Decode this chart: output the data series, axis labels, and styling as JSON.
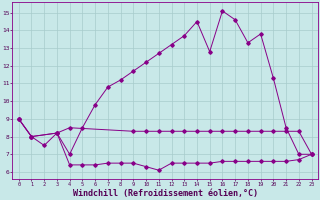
{
  "background_color": "#c8e8e8",
  "grid_color": "#a8cccc",
  "line_color": "#880088",
  "xlabel": "Windchill (Refroidissement éolien,°C)",
  "xlabel_fontsize": 6.0,
  "xlim": [
    -0.5,
    23.5
  ],
  "ylim": [
    5.6,
    15.6
  ],
  "yticks": [
    6,
    7,
    8,
    9,
    10,
    11,
    12,
    13,
    14,
    15
  ],
  "xticks": [
    0,
    1,
    2,
    3,
    4,
    5,
    6,
    7,
    8,
    9,
    10,
    11,
    12,
    13,
    14,
    15,
    16,
    17,
    18,
    19,
    20,
    21,
    22,
    23
  ],
  "series1": {
    "x": [
      0,
      1,
      2,
      3,
      4,
      5,
      6,
      7,
      8,
      9,
      10,
      11,
      12,
      13,
      14,
      15,
      16,
      17,
      18,
      19,
      20,
      21,
      22,
      23
    ],
    "y": [
      9.0,
      8.0,
      7.5,
      8.2,
      6.4,
      6.4,
      6.4,
      6.5,
      6.5,
      6.5,
      6.3,
      6.1,
      6.5,
      6.5,
      6.5,
      6.5,
      6.6,
      6.6,
      6.6,
      6.6,
      6.6,
      6.6,
      6.7,
      7.0
    ]
  },
  "series2": {
    "x": [
      0,
      1,
      3,
      4,
      9,
      10,
      11,
      12,
      13,
      14,
      15,
      16,
      17,
      18,
      19,
      20,
      21,
      22,
      23
    ],
    "y": [
      9.0,
      8.0,
      8.2,
      8.5,
      8.3,
      8.3,
      8.3,
      8.3,
      8.3,
      8.3,
      8.3,
      8.3,
      8.3,
      8.3,
      8.3,
      8.3,
      8.3,
      8.3,
      7.0
    ]
  },
  "series3": {
    "x": [
      0,
      1,
      3,
      4,
      5,
      6,
      7,
      8,
      9,
      10,
      11,
      12,
      13,
      14,
      15,
      16,
      17,
      18,
      19,
      20,
      21,
      22,
      23
    ],
    "y": [
      9.0,
      8.0,
      8.2,
      7.0,
      8.5,
      9.8,
      10.8,
      11.2,
      11.7,
      12.2,
      12.7,
      13.2,
      13.7,
      14.5,
      12.8,
      15.1,
      14.6,
      13.3,
      13.8,
      11.3,
      8.5,
      7.0,
      7.0
    ]
  }
}
